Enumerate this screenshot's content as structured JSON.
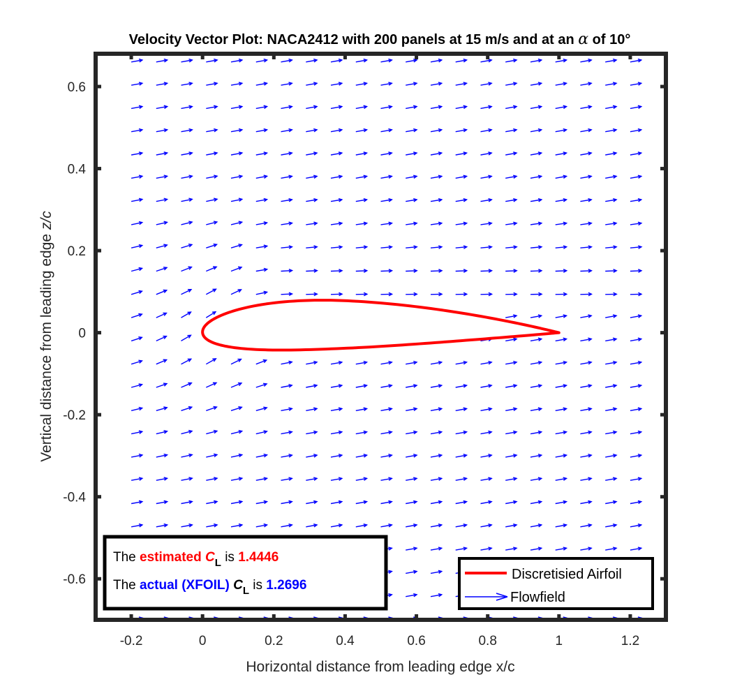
{
  "chart_data": {
    "type": "quiver",
    "title_prefix": "Velocity Vector Plot: NACA2412 with 200 panels at 15 m/s and at an ",
    "title_symbol": "α",
    "title_suffix": " of 10°",
    "xlabel": "Horizontal distance from leading edge x/c",
    "ylabel_main": "Vertical distance from leading edge  ",
    "ylabel_var": "z/c",
    "xlim": [
      -0.3,
      1.3
    ],
    "ylim": [
      -0.7,
      0.68
    ],
    "xticks": [
      -0.2,
      0,
      0.2,
      0.4,
      0.6,
      0.8,
      1,
      1.2
    ],
    "xtick_labels": [
      "-0.2",
      "0",
      "0.2",
      "0.4",
      "0.6",
      "0.8",
      "1",
      "1.2"
    ],
    "yticks": [
      -0.6,
      -0.4,
      -0.2,
      0,
      0.2,
      0.4,
      0.6
    ],
    "ytick_labels": [
      "-0.6",
      "-0.4",
      "-0.2",
      "0",
      "0.2",
      "0.4",
      "0.6"
    ],
    "grid": false,
    "freestream_speed": 15,
    "angle_of_attack_deg": 10,
    "airfoil": {
      "name": "NACA2412",
      "panels": 200,
      "max_camber": 0.02,
      "camber_position": 0.4,
      "thickness": 0.12,
      "color": "#ff0000"
    },
    "flowfield": {
      "x_range": [
        -0.2,
        1.2
      ],
      "x_count": 21,
      "y_range": [
        -0.7,
        0.66
      ],
      "y_count": 25,
      "color": "#0000ff"
    },
    "legend": {
      "location": "bottom-right",
      "entries": [
        {
          "label": "Discretisied Airfoil",
          "color": "#ff0000",
          "style": "line"
        },
        {
          "label": "Flowfield",
          "color": "#0000ff",
          "style": "arrow"
        }
      ]
    },
    "annotation": {
      "location": "bottom-left",
      "line1": {
        "pre": "The ",
        "word": "estimated",
        "var": "C",
        "sub": "L",
        "mid": " is ",
        "value": "1.4446",
        "color": "#ff0000"
      },
      "line2": {
        "pre": "The ",
        "word": "actual (XFOIL)",
        "var": "C",
        "sub": "L",
        "mid": " is ",
        "value": "1.2696",
        "color": "#0000ff"
      }
    }
  }
}
